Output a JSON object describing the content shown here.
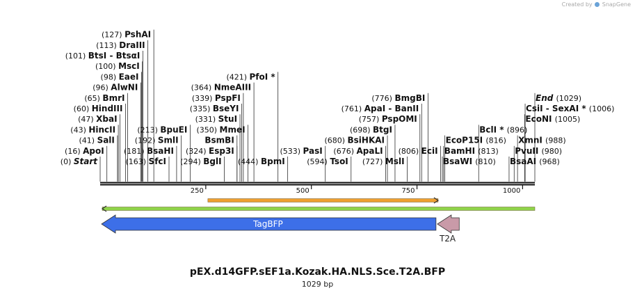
{
  "credit": {
    "prefix": "Created by",
    "brand": "SnapGene"
  },
  "map": {
    "name": "pEX.d14GFP.sEF1a.Kozak.HA.NLS.Sce.T2A.BFP",
    "length_label": "1029 bp",
    "length": 1029,
    "scale_ticks": [
      {
        "pos": 250,
        "label": "250"
      },
      {
        "pos": 500,
        "label": "500"
      },
      {
        "pos": 750,
        "label": "750"
      },
      {
        "pos": 1000,
        "label": "1000"
      }
    ],
    "sites": [
      {
        "pos": 0,
        "num": "(0)",
        "name": "Start",
        "style": "boundary"
      },
      {
        "pos": 16,
        "num": "(16)",
        "name": "ApoI"
      },
      {
        "pos": 41,
        "num": "(41)",
        "name": "SalI"
      },
      {
        "pos": 43,
        "num": "(43)",
        "name": "HincII"
      },
      {
        "pos": 47,
        "num": "(47)",
        "name": "XbaI"
      },
      {
        "pos": 60,
        "num": "(60)",
        "name": "HindIII"
      },
      {
        "pos": 65,
        "num": "(65)",
        "name": "BmrI"
      },
      {
        "pos": 96,
        "num": "(96)",
        "name": "AlwNI"
      },
      {
        "pos": 98,
        "num": "(98)",
        "name": "EaeI"
      },
      {
        "pos": 100,
        "num": "(100)",
        "name": "MscI"
      },
      {
        "pos": 101,
        "num": "(101)",
        "name": "BtsI - BtsαI"
      },
      {
        "pos": 113,
        "num": "(113)",
        "name": "DraIII"
      },
      {
        "pos": 127,
        "num": "(127)",
        "name": "PshAI"
      },
      {
        "pos": 163,
        "num": "(163)",
        "name": "SfcI"
      },
      {
        "pos": 181,
        "num": "(181)",
        "name": "BsaHI"
      },
      {
        "pos": 192,
        "num": "(192)",
        "name": "SmlI"
      },
      {
        "pos": 213,
        "num": "(213)",
        "name": "BpuEI"
      },
      {
        "pos": 294,
        "num": "(294)",
        "name": "BglI"
      },
      {
        "pos": 324,
        "num": "(324)",
        "name": "Esp3I"
      },
      {
        "pos": 324,
        "num": "",
        "name": "BsmBI"
      },
      {
        "pos": 331,
        "num": "(331)",
        "name": "StuI"
      },
      {
        "pos": 335,
        "num": "(335)",
        "name": "BseYI"
      },
      {
        "pos": 339,
        "num": "(339)",
        "name": "PspFI"
      },
      {
        "pos": 350,
        "num": "(350)",
        "name": "MmeI"
      },
      {
        "pos": 364,
        "num": "(364)",
        "name": "NmeAIII"
      },
      {
        "pos": 421,
        "num": "(421)",
        "name": "PfoI *"
      },
      {
        "pos": 444,
        "num": "(444)",
        "name": "BpmI"
      },
      {
        "pos": 533,
        "num": "(533)",
        "name": "PasI"
      },
      {
        "pos": 594,
        "num": "(594)",
        "name": "TsoI"
      },
      {
        "pos": 676,
        "num": "(676)",
        "name": "ApaLI"
      },
      {
        "pos": 680,
        "num": "(680)",
        "name": "BsiHKAI"
      },
      {
        "pos": 698,
        "num": "(698)",
        "name": "BtgI"
      },
      {
        "pos": 727,
        "num": "(727)",
        "name": "MslI"
      },
      {
        "pos": 757,
        "num": "(757)",
        "name": "PspOMI"
      },
      {
        "pos": 761,
        "num": "(761)",
        "name": "ApaI - BanII"
      },
      {
        "pos": 776,
        "num": "(776)",
        "name": "BmgBI"
      },
      {
        "pos": 806,
        "num": "(806)",
        "name": "EciI"
      },
      {
        "pos": 810,
        "num": "(810)",
        "name": "BsaWI",
        "side": "right"
      },
      {
        "pos": 813,
        "num": "(813)",
        "name": "BamHI",
        "side": "right"
      },
      {
        "pos": 816,
        "num": "(816)",
        "name": "EcoP15I",
        "side": "right"
      },
      {
        "pos": 896,
        "num": "(896)",
        "name": "BclI *",
        "side": "right"
      },
      {
        "pos": 968,
        "num": "(968)",
        "name": "BsaAI",
        "side": "right"
      },
      {
        "pos": 980,
        "num": "(980)",
        "name": "PvuII",
        "side": "right"
      },
      {
        "pos": 988,
        "num": "(988)",
        "name": "XmnI",
        "side": "right"
      },
      {
        "pos": 1005,
        "num": "(1005)",
        "name": "EcoNI",
        "side": "right"
      },
      {
        "pos": 1006,
        "num": "(1006)",
        "name": "CsiI - SexAI *",
        "side": "right"
      },
      {
        "pos": 1029,
        "num": "(1029)",
        "name": "End",
        "style": "boundary",
        "side": "right"
      }
    ],
    "features": [
      {
        "kind": "thin-arrow",
        "name": "orange-feature",
        "start": 255,
        "end": 800,
        "direction": "forward",
        "color": "#f0a030"
      },
      {
        "kind": "thin-arrow",
        "name": "green-feature",
        "start": 5,
        "end": 1029,
        "direction": "reverse",
        "color": "#8fd44a"
      },
      {
        "kind": "block-arrow",
        "name": "TagBFP",
        "label": "TagBFP",
        "start": 0,
        "end": 795,
        "direction": "reverse",
        "color": "#3d6fe8",
        "label_color": "#ffffff",
        "label_inside": true
      },
      {
        "kind": "block-arrow",
        "name": "T2A",
        "label": "T2A",
        "start": 795,
        "end": 850,
        "direction": "reverse",
        "color": "#c99aa8",
        "label_color": "#222222",
        "label_inside": false
      }
    ]
  }
}
